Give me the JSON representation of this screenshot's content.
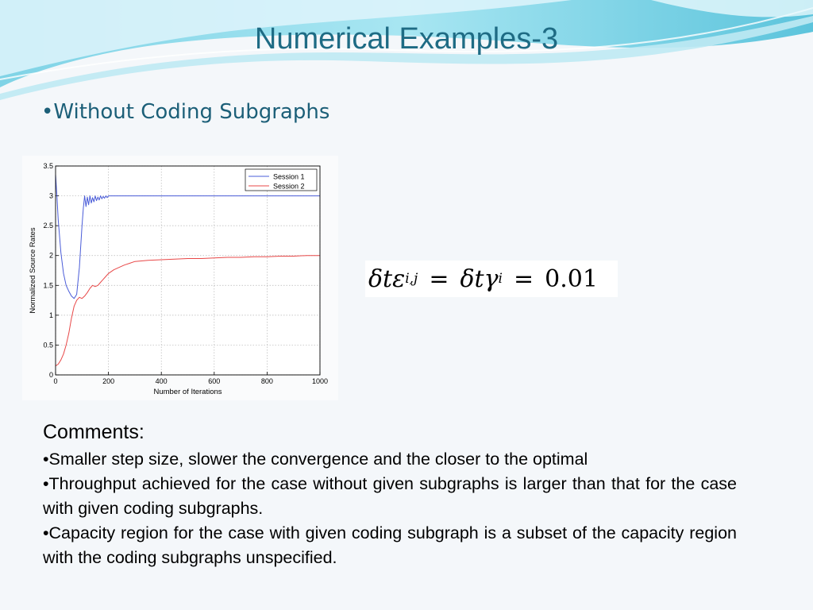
{
  "slide": {
    "title": "Numerical Examples-3",
    "bullet_heading": "•Without Coding Subgraphs"
  },
  "equation": {
    "lhs": "δtε",
    "lhs_sub": "i,j",
    "mid": "δtγ",
    "mid_sub": "i",
    "equals": "=",
    "rhs": "0.01"
  },
  "comments": {
    "heading": "Comments:",
    "items": [
      "•Smaller step size, slower the convergence and the closer to the optimal",
      "•Throughput achieved for the case without given subgraphs is larger than that for the case with given coding subgraphs.",
      "•Capacity region for the case with given coding subgraph is a subset of the capacity region with the coding subgraphs unspecified."
    ]
  },
  "colors": {
    "title": "#1e6b84",
    "session1": "#4a5cd8",
    "session2": "#e84848",
    "grid": "#b5b5b5"
  },
  "chart_data": {
    "type": "line",
    "xlabel": "Number of Iterations",
    "ylabel": "Normalized Source Rates",
    "xlim": [
      0,
      1000
    ],
    "ylim": [
      0,
      3.5
    ],
    "xticks": [
      "0",
      "200",
      "400",
      "600",
      "800",
      "1000"
    ],
    "yticks": [
      "0",
      "0.5",
      "1",
      "1.5",
      "2",
      "2.5",
      "3",
      "3.5"
    ],
    "grid": true,
    "legend_position": "top-right",
    "series": [
      {
        "name": "Session 1",
        "x": [
          0,
          5,
          10,
          20,
          30,
          40,
          50,
          60,
          70,
          80,
          90,
          100,
          105,
          110,
          115,
          120,
          125,
          130,
          135,
          140,
          145,
          150,
          155,
          160,
          165,
          170,
          175,
          180,
          185,
          190,
          195,
          200,
          210,
          250,
          300,
          400,
          500,
          600,
          700,
          800,
          900,
          1000
        ],
        "y": [
          3.35,
          3.0,
          2.6,
          2.05,
          1.7,
          1.5,
          1.4,
          1.32,
          1.28,
          1.35,
          1.8,
          2.5,
          2.8,
          3.0,
          2.82,
          2.98,
          2.85,
          3.0,
          2.88,
          2.97,
          2.9,
          3.0,
          2.92,
          2.98,
          2.93,
          3.0,
          2.95,
          2.99,
          2.96,
          3.0,
          2.97,
          3.0,
          3.0,
          3.0,
          3.0,
          3.0,
          3.0,
          3.0,
          3.0,
          3.0,
          3.0,
          3.0
        ]
      },
      {
        "name": "Session 2",
        "x": [
          0,
          10,
          20,
          30,
          40,
          50,
          60,
          70,
          80,
          90,
          100,
          110,
          120,
          130,
          140,
          150,
          160,
          170,
          180,
          190,
          200,
          220,
          240,
          260,
          280,
          300,
          350,
          400,
          450,
          500,
          550,
          600,
          650,
          700,
          750,
          800,
          850,
          900,
          950,
          1000
        ],
        "y": [
          0.15,
          0.18,
          0.25,
          0.35,
          0.5,
          0.7,
          0.95,
          1.15,
          1.25,
          1.3,
          1.28,
          1.32,
          1.38,
          1.45,
          1.5,
          1.48,
          1.5,
          1.55,
          1.6,
          1.65,
          1.7,
          1.76,
          1.8,
          1.84,
          1.87,
          1.9,
          1.92,
          1.93,
          1.94,
          1.95,
          1.95,
          1.96,
          1.97,
          1.97,
          1.98,
          1.98,
          1.99,
          1.99,
          2.0,
          2.0
        ]
      }
    ]
  }
}
